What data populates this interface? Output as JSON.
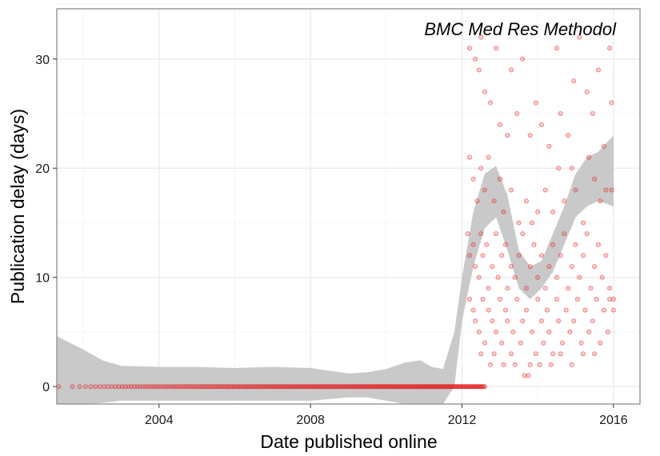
{
  "chart_data": {
    "type": "scatter",
    "title": "BMC Med Res Methodol",
    "xlabel": "Date published online",
    "ylabel": "Publication delay (days)",
    "xlim": [
      2001.3,
      2016.7
    ],
    "ylim": [
      -1.6,
      34.6
    ],
    "x_ticks": [
      2004,
      2008,
      2012,
      2016
    ],
    "x_tick_labels": [
      "2004",
      "2008",
      "2012",
      "2016"
    ],
    "y_ticks": [
      0,
      10,
      20,
      30
    ],
    "y_tick_labels": [
      "0",
      "10",
      "20",
      "30"
    ],
    "grid": true,
    "point_color": "#e41a1c",
    "point_opacity": 0.22,
    "band_color": "#c9c9c9",
    "zero_delay_points": {
      "y": 0,
      "x_start": 2001.35,
      "x_end": 2012.6,
      "count": 260
    },
    "scatter_points": [
      [
        2012.2,
        31
      ],
      [
        2012.35,
        30
      ],
      [
        2012.45,
        29
      ],
      [
        2012.5,
        32
      ],
      [
        2012.6,
        27
      ],
      [
        2012.75,
        26
      ],
      [
        2012.9,
        31
      ],
      [
        2013.0,
        24
      ],
      [
        2013.2,
        23
      ],
      [
        2013.3,
        29
      ],
      [
        2013.45,
        25
      ],
      [
        2013.6,
        30
      ],
      [
        2013.8,
        23
      ],
      [
        2013.95,
        26
      ],
      [
        2014.1,
        24
      ],
      [
        2014.3,
        22
      ],
      [
        2014.5,
        31
      ],
      [
        2014.6,
        25
      ],
      [
        2014.8,
        23
      ],
      [
        2014.95,
        28
      ],
      [
        2015.1,
        32
      ],
      [
        2015.3,
        27
      ],
      [
        2015.45,
        25
      ],
      [
        2015.6,
        29
      ],
      [
        2015.75,
        22
      ],
      [
        2015.9,
        31
      ],
      [
        2015.95,
        26
      ],
      [
        2012.2,
        21
      ],
      [
        2012.3,
        19
      ],
      [
        2012.4,
        17
      ],
      [
        2012.5,
        20
      ],
      [
        2012.6,
        18
      ],
      [
        2012.7,
        21
      ],
      [
        2012.85,
        17
      ],
      [
        2013.0,
        19
      ],
      [
        2013.1,
        16
      ],
      [
        2013.3,
        18
      ],
      [
        2013.5,
        15
      ],
      [
        2013.7,
        17
      ],
      [
        2013.85,
        15
      ],
      [
        2014.0,
        16
      ],
      [
        2014.2,
        18
      ],
      [
        2014.4,
        16
      ],
      [
        2014.55,
        20
      ],
      [
        2014.7,
        17
      ],
      [
        2014.9,
        20
      ],
      [
        2015.0,
        18
      ],
      [
        2015.2,
        15
      ],
      [
        2015.35,
        21
      ],
      [
        2015.5,
        19
      ],
      [
        2015.65,
        17
      ],
      [
        2015.8,
        18
      ],
      [
        2015.95,
        18
      ],
      [
        2012.15,
        14
      ],
      [
        2012.2,
        12
      ],
      [
        2012.3,
        13
      ],
      [
        2012.35,
        11
      ],
      [
        2012.45,
        10
      ],
      [
        2012.5,
        14
      ],
      [
        2012.55,
        12
      ],
      [
        2012.65,
        13
      ],
      [
        2012.7,
        9
      ],
      [
        2012.8,
        11
      ],
      [
        2012.9,
        14
      ],
      [
        2012.95,
        10
      ],
      [
        2013.05,
        12
      ],
      [
        2013.15,
        13
      ],
      [
        2013.2,
        9
      ],
      [
        2013.3,
        11
      ],
      [
        2013.4,
        10
      ],
      [
        2013.5,
        12
      ],
      [
        2013.6,
        14
      ],
      [
        2013.7,
        9
      ],
      [
        2013.8,
        11
      ],
      [
        2013.9,
        13
      ],
      [
        2014.0,
        10
      ],
      [
        2014.1,
        12
      ],
      [
        2014.2,
        9
      ],
      [
        2014.3,
        11
      ],
      [
        2014.4,
        13
      ],
      [
        2014.5,
        10
      ],
      [
        2014.6,
        12
      ],
      [
        2014.7,
        14
      ],
      [
        2014.8,
        9
      ],
      [
        2014.9,
        11
      ],
      [
        2015.0,
        13
      ],
      [
        2015.1,
        10
      ],
      [
        2015.2,
        12
      ],
      [
        2015.3,
        14
      ],
      [
        2015.4,
        9
      ],
      [
        2015.5,
        11
      ],
      [
        2015.6,
        13
      ],
      [
        2015.7,
        10
      ],
      [
        2015.8,
        12
      ],
      [
        2015.9,
        9
      ],
      [
        2016.0,
        8
      ],
      [
        2012.2,
        8
      ],
      [
        2012.3,
        7
      ],
      [
        2012.35,
        6
      ],
      [
        2012.45,
        5
      ],
      [
        2012.55,
        8
      ],
      [
        2012.6,
        4
      ],
      [
        2012.7,
        7
      ],
      [
        2012.8,
        6
      ],
      [
        2012.85,
        3
      ],
      [
        2012.9,
        5
      ],
      [
        2013.0,
        8
      ],
      [
        2013.05,
        4
      ],
      [
        2013.15,
        7
      ],
      [
        2013.2,
        6
      ],
      [
        2013.3,
        3
      ],
      [
        2013.35,
        5
      ],
      [
        2013.45,
        8
      ],
      [
        2013.55,
        4
      ],
      [
        2013.6,
        6
      ],
      [
        2013.7,
        7
      ],
      [
        2013.8,
        2
      ],
      [
        2013.85,
        5
      ],
      [
        2013.95,
        3
      ],
      [
        2014.0,
        8
      ],
      [
        2014.1,
        6
      ],
      [
        2014.15,
        4
      ],
      [
        2014.25,
        7
      ],
      [
        2014.3,
        5
      ],
      [
        2014.4,
        3
      ],
      [
        2014.5,
        8
      ],
      [
        2014.55,
        6
      ],
      [
        2014.65,
        4
      ],
      [
        2014.75,
        7
      ],
      [
        2014.85,
        5
      ],
      [
        2014.95,
        6
      ],
      [
        2015.05,
        8
      ],
      [
        2015.15,
        4
      ],
      [
        2015.25,
        7
      ],
      [
        2015.35,
        5
      ],
      [
        2015.45,
        6
      ],
      [
        2015.55,
        8
      ],
      [
        2015.65,
        4
      ],
      [
        2015.75,
        7
      ],
      [
        2015.85,
        5
      ],
      [
        2015.9,
        8
      ],
      [
        2016.0,
        7
      ],
      [
        2012.5,
        3
      ],
      [
        2012.75,
        2
      ],
      [
        2013.1,
        2
      ],
      [
        2013.4,
        2
      ],
      [
        2013.65,
        1
      ],
      [
        2013.75,
        1
      ],
      [
        2014.05,
        2
      ],
      [
        2014.35,
        2
      ],
      [
        2014.6,
        3
      ],
      [
        2014.9,
        2
      ],
      [
        2015.2,
        3
      ],
      [
        2015.5,
        3
      ]
    ],
    "confidence_band": {
      "upper": [
        [
          2001.3,
          4.6
        ],
        [
          2002.0,
          3.4
        ],
        [
          2002.5,
          2.4
        ],
        [
          2003.0,
          1.9
        ],
        [
          2004.0,
          1.8
        ],
        [
          2005.0,
          1.8
        ],
        [
          2006.0,
          1.7
        ],
        [
          2007.0,
          1.8
        ],
        [
          2008.0,
          1.7
        ],
        [
          2009.0,
          1.2
        ],
        [
          2009.5,
          1.3
        ],
        [
          2010.0,
          1.6
        ],
        [
          2010.5,
          2.2
        ],
        [
          2010.9,
          2.4
        ],
        [
          2011.2,
          1.8
        ],
        [
          2011.5,
          1.6
        ],
        [
          2011.8,
          5
        ],
        [
          2012.0,
          10
        ],
        [
          2012.3,
          16
        ],
        [
          2012.6,
          19.5
        ],
        [
          2012.9,
          20.2
        ],
        [
          2013.2,
          17.5
        ],
        [
          2013.5,
          12.5
        ],
        [
          2013.8,
          11
        ],
        [
          2014.1,
          11.5
        ],
        [
          2014.4,
          14
        ],
        [
          2014.7,
          16.5
        ],
        [
          2015.0,
          19.5
        ],
        [
          2015.3,
          21
        ],
        [
          2015.6,
          21.5
        ],
        [
          2016.0,
          23
        ]
      ],
      "lower": [
        [
          2001.3,
          -1.6
        ],
        [
          2002.0,
          -1.6
        ],
        [
          2002.5,
          -1.5
        ],
        [
          2003.0,
          -1.3
        ],
        [
          2004.0,
          -1.3
        ],
        [
          2005.0,
          -1.3
        ],
        [
          2006.0,
          -1.3
        ],
        [
          2007.0,
          -1.3
        ],
        [
          2008.0,
          -1.3
        ],
        [
          2009.0,
          -1.0
        ],
        [
          2009.5,
          -1.0
        ],
        [
          2010.0,
          -1.3
        ],
        [
          2010.5,
          -1.6
        ],
        [
          2010.9,
          -1.6
        ],
        [
          2011.2,
          -1.6
        ],
        [
          2011.5,
          -1.6
        ],
        [
          2011.8,
          0
        ],
        [
          2012.0,
          6
        ],
        [
          2012.3,
          11
        ],
        [
          2012.6,
          14.5
        ],
        [
          2012.9,
          15.5
        ],
        [
          2013.2,
          12.5
        ],
        [
          2013.5,
          9
        ],
        [
          2013.8,
          8
        ],
        [
          2014.1,
          9
        ],
        [
          2014.4,
          10.5
        ],
        [
          2014.7,
          13
        ],
        [
          2015.0,
          15.5
        ],
        [
          2015.3,
          16.5
        ],
        [
          2015.6,
          17
        ],
        [
          2016.0,
          16.5
        ]
      ]
    }
  }
}
